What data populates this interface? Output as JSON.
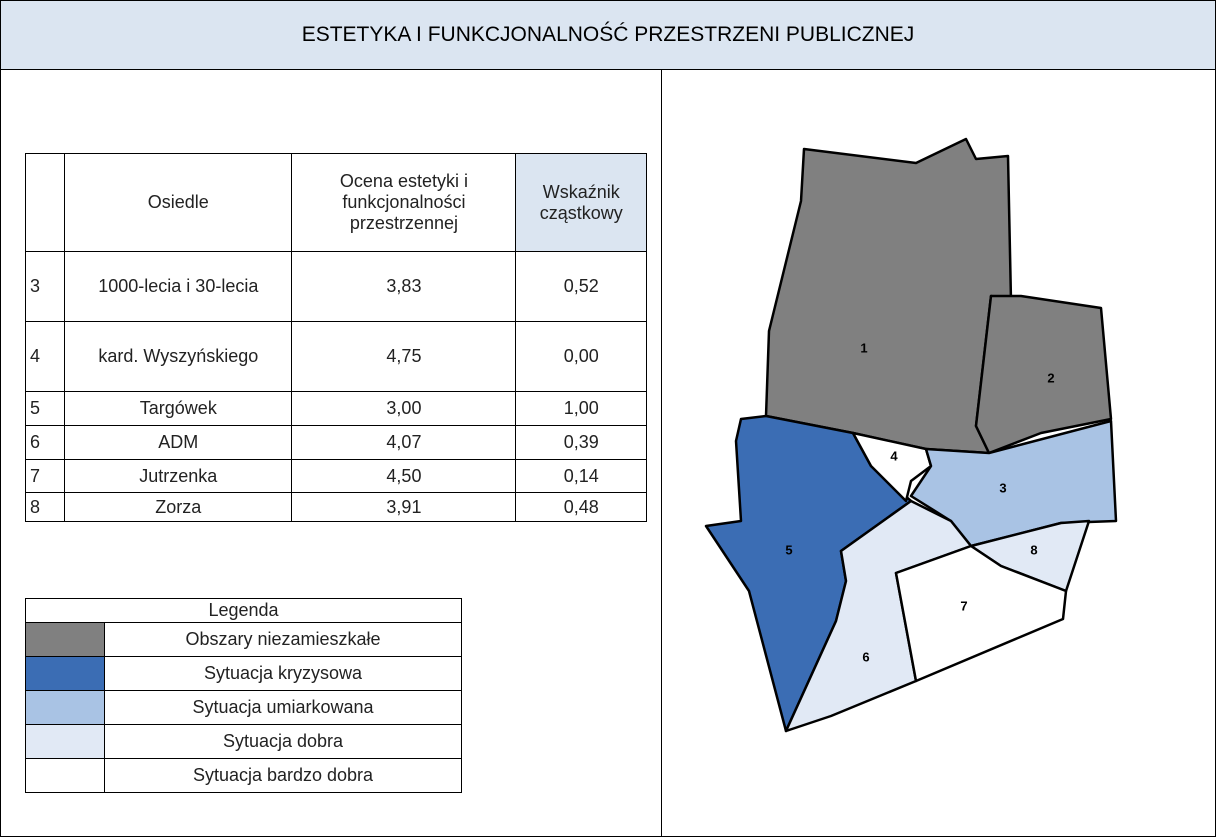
{
  "header": {
    "title": "ESTETYKA I FUNKCJONALNOŚĆ PRZESTRZENI PUBLICZNEJ"
  },
  "table": {
    "headers": [
      "",
      "Osiedle",
      "Ocena estetyki i funkcjonalności przestrzennej",
      "Wskaźnik cząstkowy"
    ],
    "rows": [
      [
        "3",
        "1000-lecia i 30-lecia",
        "3,83",
        "0,52"
      ],
      [
        "4",
        "kard. Wyszyńskiego",
        "4,75",
        "0,00"
      ],
      [
        "5",
        "Targówek",
        "3,00",
        "1,00"
      ],
      [
        "6",
        "ADM",
        "4,07",
        "0,39"
      ],
      [
        "7",
        "Jutrzenka",
        "4,50",
        "0,14"
      ],
      [
        "8",
        "Zorza",
        "3,91",
        "0,48"
      ]
    ]
  },
  "legend": {
    "title": "Legenda",
    "items": [
      {
        "label": "Obszary niezamieszkałe",
        "color": "#808080"
      },
      {
        "label": "Sytuacja kryzysowa",
        "color": "#3b6db4"
      },
      {
        "label": "Sytuacja umiarkowana",
        "color": "#a9c3e4"
      },
      {
        "label": "Sytuacja dobra",
        "color": "#e1e9f5"
      },
      {
        "label": "Sytuacja bardzo dobra",
        "color": "#ffffff"
      }
    ]
  },
  "map": {
    "labels": [
      "1",
      "2",
      "3",
      "4",
      "5",
      "6",
      "7",
      "8"
    ]
  }
}
